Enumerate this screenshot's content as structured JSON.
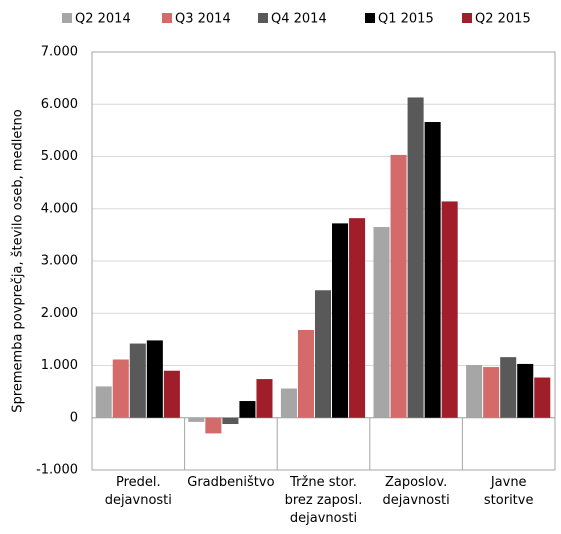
{
  "chart_data": {
    "type": "bar",
    "y_label": "Sprememba povprečja, število oseb, medletno",
    "categories": [
      "Predel.\ndejavnosti",
      "Gradbeništvo",
      "Tržne stor.\nbrez zaposl.\ndejavnosti",
      "Zaposlov.\ndejavnosti",
      "Javne\nstoritve"
    ],
    "series": [
      {
        "name": "Q2 2014",
        "color": "#a6a6a6",
        "values": [
          600,
          -80,
          560,
          3650,
          1010
        ]
      },
      {
        "name": "Q3 2014",
        "color": "#d46a6a",
        "values": [
          1115,
          -300,
          1680,
          5030,
          970
        ]
      },
      {
        "name": "Q4 2014",
        "color": "#595959",
        "values": [
          1420,
          -120,
          2440,
          6130,
          1160
        ]
      },
      {
        "name": "Q1 2015",
        "color": "#000000",
        "values": [
          1480,
          320,
          3720,
          5660,
          1030
        ]
      },
      {
        "name": "Q2 2015",
        "color": "#a01e2a",
        "values": [
          900,
          740,
          3820,
          4140,
          770
        ]
      }
    ],
    "ylim": [
      -1000,
      7000
    ],
    "yticks": [
      {
        "value": -1000,
        "label": "-1.000"
      },
      0,
      {
        "value": 1000,
        "label": "1.000"
      },
      {
        "value": 2000,
        "label": "2.000"
      },
      {
        "value": 3000,
        "label": "3.000"
      },
      {
        "value": 4000,
        "label": "4.000"
      },
      {
        "value": 5000,
        "label": "5.000"
      },
      {
        "value": 6000,
        "label": "6.000"
      },
      {
        "value": 7000,
        "label": "7.000"
      }
    ],
    "grid": true
  }
}
